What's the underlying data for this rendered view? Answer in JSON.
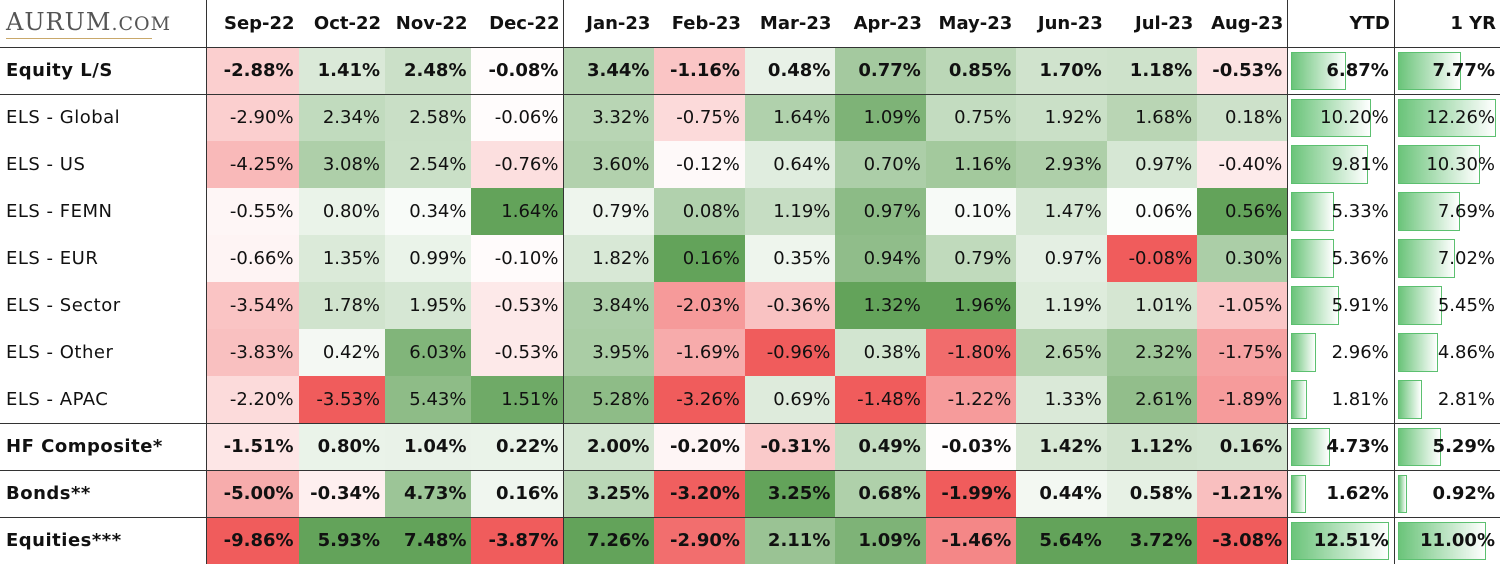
{
  "logo": {
    "main": "AURUM",
    "domain": ".COM"
  },
  "months": [
    "Sep-22",
    "Oct-22",
    "Nov-22",
    "Dec-22",
    "Jan-23",
    "Feb-23",
    "Mar-23",
    "Apr-23",
    "May-23",
    "Jun-23",
    "Jul-23",
    "Aug-23"
  ],
  "summary_headers": [
    "YTD",
    "1 YR"
  ],
  "rows": [
    {
      "name": "Equity L/S",
      "bold": true,
      "values": [
        -2.88,
        1.41,
        2.48,
        -0.08,
        3.44,
        -1.16,
        0.48,
        0.77,
        0.85,
        1.7,
        1.18,
        -0.53
      ],
      "ytd": 6.87,
      "yr": 7.77
    },
    {
      "name": "ELS - Global",
      "bold": false,
      "values": [
        -2.9,
        2.34,
        2.58,
        -0.06,
        3.32,
        -0.75,
        1.64,
        1.09,
        0.75,
        1.92,
        1.68,
        0.18
      ],
      "ytd": 10.2,
      "yr": 12.26
    },
    {
      "name": "ELS - US",
      "bold": false,
      "values": [
        -4.25,
        3.08,
        2.54,
        -0.76,
        3.6,
        -0.12,
        0.64,
        0.7,
        1.16,
        2.93,
        0.97,
        -0.4
      ],
      "ytd": 9.81,
      "yr": 10.3
    },
    {
      "name": "ELS - FEMN",
      "bold": false,
      "values": [
        -0.55,
        0.8,
        0.34,
        1.64,
        0.79,
        0.08,
        1.19,
        0.97,
        0.1,
        1.47,
        0.06,
        0.56
      ],
      "ytd": 5.33,
      "yr": 7.69
    },
    {
      "name": "ELS - EUR",
      "bold": false,
      "values": [
        -0.66,
        1.35,
        0.99,
        -0.1,
        1.82,
        0.16,
        0.35,
        0.94,
        0.79,
        0.97,
        -0.08,
        0.3
      ],
      "ytd": 5.36,
      "yr": 7.02
    },
    {
      "name": "ELS - Sector",
      "bold": false,
      "values": [
        -3.54,
        1.78,
        1.95,
        -0.53,
        3.84,
        -2.03,
        -0.36,
        1.32,
        1.96,
        1.19,
        1.01,
        -1.05
      ],
      "ytd": 5.91,
      "yr": 5.45
    },
    {
      "name": "ELS - Other",
      "bold": false,
      "values": [
        -3.83,
        0.42,
        6.03,
        -0.53,
        3.95,
        -1.69,
        -0.96,
        0.38,
        -1.8,
        2.65,
        2.32,
        -1.75
      ],
      "ytd": 2.96,
      "yr": 4.86
    },
    {
      "name": "ELS - APAC",
      "bold": false,
      "values": [
        -2.2,
        -3.53,
        5.43,
        1.51,
        5.28,
        -3.26,
        0.69,
        -1.48,
        -1.22,
        1.33,
        2.61,
        -1.89
      ],
      "ytd": 1.81,
      "yr": 2.81
    },
    {
      "name": "HF Composite*",
      "bold": true,
      "values": [
        -1.51,
        0.8,
        1.04,
        0.22,
        2.0,
        -0.2,
        -0.31,
        0.49,
        -0.03,
        1.42,
        1.12,
        0.16
      ],
      "ytd": 4.73,
      "yr": 5.29
    },
    {
      "name": "Bonds**",
      "bold": true,
      "values": [
        -5.0,
        -0.34,
        4.73,
        0.16,
        3.25,
        -3.2,
        3.25,
        0.68,
        -1.99,
        0.44,
        0.58,
        -1.21
      ],
      "ytd": 1.62,
      "yr": 0.92
    },
    {
      "name": "Equities***",
      "bold": true,
      "values": [
        -9.86,
        5.93,
        7.48,
        -3.87,
        7.26,
        -2.9,
        2.11,
        1.09,
        -1.46,
        5.64,
        3.72,
        -3.08
      ],
      "ytd": 12.51,
      "yr": 11.0
    }
  ],
  "colors": {
    "positive": "#63a35a",
    "negative": "#f05c5c",
    "neutral": "#ffffff",
    "bar_border": "#5cc070"
  }
}
